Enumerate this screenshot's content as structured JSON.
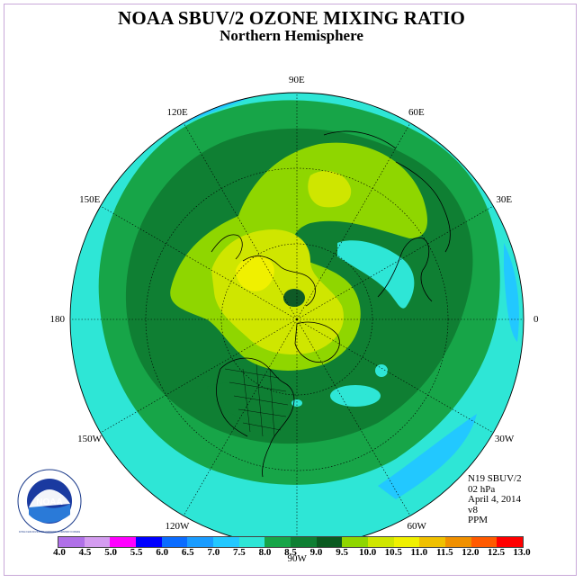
{
  "header": {
    "title": "NOAA SBUV/2 OZONE MIXING RATIO",
    "subtitle": "Northern Hemisphere"
  },
  "map": {
    "projection": "north-polar-stereographic",
    "longitude_labels": [
      {
        "text": "90E",
        "lon": 90
      },
      {
        "text": "60E",
        "lon": 60
      },
      {
        "text": "30E",
        "lon": 30
      },
      {
        "text": "0",
        "lon": 0
      },
      {
        "text": "30W",
        "lon": -30
      },
      {
        "text": "60W",
        "lon": -60
      },
      {
        "text": "90W",
        "lon": -90
      },
      {
        "text": "120W",
        "lon": -120
      },
      {
        "text": "150W",
        "lon": -150
      },
      {
        "text": "180",
        "lon": 180
      },
      {
        "text": "150E",
        "lon": 150
      },
      {
        "text": "120E",
        "lon": 120
      }
    ],
    "field_colors": {
      "outer": "#2ee6d6",
      "belt_mid": "#17a548",
      "belt_dark": "#0f7f33",
      "inner_95": "#8fd600",
      "inner_100": "#cfe600",
      "inner_105": "#f0f000",
      "pole_dark": "#0f5a26",
      "lowband": "#22c8ff"
    }
  },
  "info": {
    "satellite": "N19 SBUV/2",
    "pressure_level": "02 hPa",
    "date": "April 4, 2014",
    "version": "v8",
    "units": "PPM"
  },
  "colorbar": {
    "ticks": [
      "4.0",
      "4.5",
      "5.0",
      "5.5",
      "6.0",
      "6.5",
      "7.0",
      "7.5",
      "8.0",
      "8.5",
      "9.0",
      "9.5",
      "10.0",
      "10.5",
      "11.0",
      "11.5",
      "12.0",
      "12.5",
      "13.0"
    ],
    "colors": [
      "#b070e8",
      "#d49cf0",
      "#ff00ff",
      "#0000ff",
      "#0a6cff",
      "#1a9cff",
      "#22c8ff",
      "#2ee6d6",
      "#17a548",
      "#0f7f33",
      "#0a5a20",
      "#8fd600",
      "#cfe600",
      "#f0f000",
      "#f0c000",
      "#f09000",
      "#ff5a00",
      "#ff0000",
      "#8b5a3c"
    ]
  },
  "logo": {
    "text": "NOAA",
    "ring_text": "NATIONAL OCEANIC AND ATMOSPHERIC ADMINISTRATION · U.S. DEPARTMENT OF COMMERCE"
  }
}
